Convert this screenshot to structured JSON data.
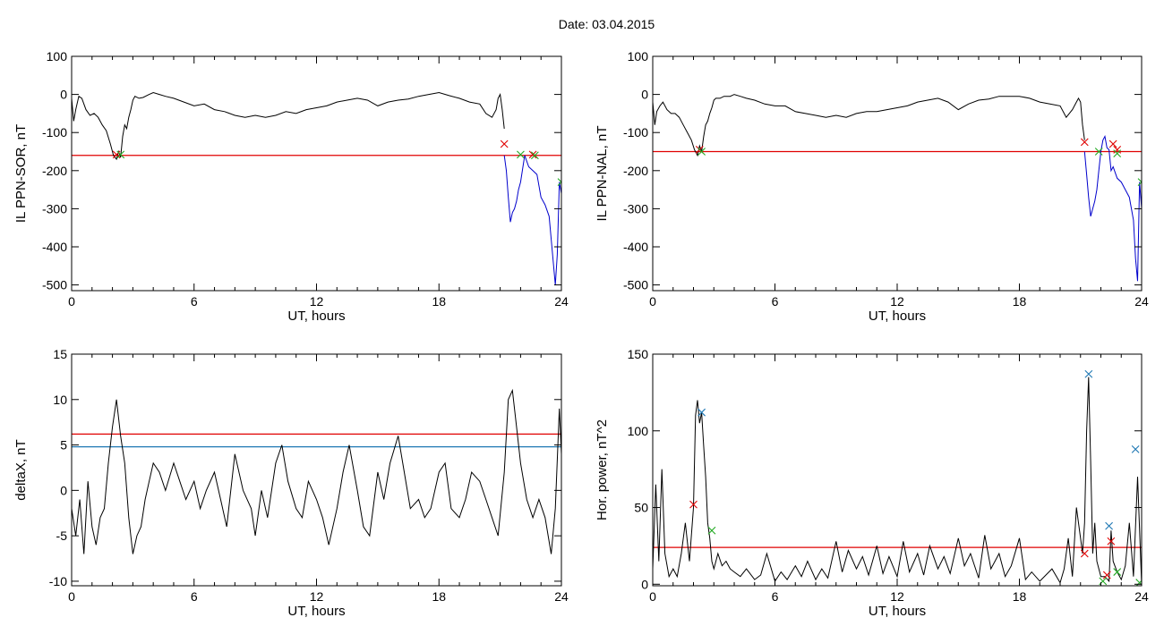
{
  "figure_title": "Date:  03.04.2015",
  "chart_data": [
    {
      "type": "line",
      "ylabel": "IL PPN-SOR, nT",
      "xlabel": "UT, hours",
      "xlim": [
        0,
        24
      ],
      "ylim": [
        -515,
        100
      ],
      "xticks": [
        0,
        6,
        12,
        18,
        24
      ],
      "yticks": [
        100,
        0,
        -100,
        -200,
        -300,
        -400,
        -500
      ],
      "threshold": -160,
      "threshold_color": "#e00000",
      "series": [
        {
          "color": "#000000",
          "x": [
            0,
            0.1,
            0.2,
            0.35,
            0.5,
            0.7,
            0.9,
            1.1,
            1.3,
            1.5,
            1.7,
            1.9,
            2.05,
            2.2,
            2.3,
            2.4,
            2.5,
            2.6,
            2.7,
            2.8,
            2.9,
            3.0,
            3.1,
            3.3,
            3.5,
            3.8,
            4.0,
            4.3,
            4.6,
            5.0,
            5.5,
            6.0,
            6.5,
            7.0,
            7.5,
            8.0,
            8.5,
            9.0,
            9.5,
            10.0,
            10.5,
            11.0,
            11.5,
            12.0,
            12.5,
            13.0,
            13.5,
            14.0,
            14.5,
            15.0,
            15.5,
            16.0,
            16.5,
            17.0,
            17.5,
            18.0,
            18.5,
            19.0,
            19.5,
            20.0,
            20.3,
            20.6,
            20.8,
            20.9,
            21.0,
            21.1,
            21.2
          ],
          "y": [
            -10,
            -70,
            -40,
            -5,
            -10,
            -40,
            -55,
            -50,
            -60,
            -80,
            -95,
            -130,
            -160,
            -170,
            -150,
            -165,
            -110,
            -80,
            -90,
            -60,
            -40,
            -15,
            -5,
            -10,
            -8,
            0,
            5,
            0,
            -5,
            -10,
            -20,
            -30,
            -25,
            -40,
            -45,
            -55,
            -60,
            -55,
            -60,
            -55,
            -45,
            -50,
            -40,
            -35,
            -30,
            -20,
            -15,
            -10,
            -15,
            -30,
            -20,
            -15,
            -12,
            -5,
            0,
            5,
            -3,
            -10,
            -20,
            -25,
            -50,
            -60,
            -40,
            -10,
            0,
            -40,
            -90
          ]
        },
        {
          "color": "#0000cc",
          "x": [
            21.2,
            21.3,
            21.4,
            21.5,
            21.6,
            21.7,
            21.8,
            21.9,
            22.0,
            22.2,
            22.4,
            22.6,
            22.8,
            23.0,
            23.2,
            23.4,
            23.5,
            23.6,
            23.7,
            23.8,
            23.9,
            24.0
          ],
          "y": [
            -160,
            -200,
            -270,
            -335,
            -310,
            -300,
            -280,
            -250,
            -230,
            -160,
            -190,
            -200,
            -210,
            -270,
            -290,
            -320,
            -380,
            -440,
            -500,
            -420,
            -230,
            -260
          ]
        }
      ],
      "markers": [
        {
          "x": 2.2,
          "y": -158,
          "color": "#e00000"
        },
        {
          "x": 2.4,
          "y": -158,
          "color": "#22aa22"
        },
        {
          "x": 21.2,
          "y": -130,
          "color": "#e00000"
        },
        {
          "x": 22.0,
          "y": -158,
          "color": "#22aa22"
        },
        {
          "x": 22.6,
          "y": -158,
          "color": "#e00000"
        },
        {
          "x": 22.7,
          "y": -160,
          "color": "#22aa22"
        },
        {
          "x": 24.0,
          "y": -230,
          "color": "#22aa22"
        }
      ]
    },
    {
      "type": "line",
      "ylabel": "IL PPN-NAL, nT",
      "xlabel": "UT, hours",
      "xlim": [
        0,
        24
      ],
      "ylim": [
        -515,
        100
      ],
      "xticks": [
        0,
        6,
        12,
        18,
        24
      ],
      "yticks": [
        100,
        0,
        -100,
        -200,
        -300,
        -400,
        -500
      ],
      "threshold": -150,
      "threshold_color": "#e00000",
      "series": [
        {
          "color": "#000000",
          "x": [
            0,
            0.1,
            0.2,
            0.35,
            0.5,
            0.7,
            0.9,
            1.1,
            1.3,
            1.5,
            1.7,
            1.9,
            2.05,
            2.2,
            2.3,
            2.4,
            2.5,
            2.6,
            2.7,
            2.8,
            2.9,
            3.0,
            3.1,
            3.3,
            3.5,
            3.8,
            4.0,
            4.3,
            4.6,
            5.0,
            5.5,
            6.0,
            6.5,
            7.0,
            7.5,
            8.0,
            8.5,
            9.0,
            9.5,
            10.0,
            10.5,
            11.0,
            11.5,
            12.0,
            12.5,
            13.0,
            13.5,
            14.0,
            14.5,
            15.0,
            15.5,
            16.0,
            16.5,
            17.0,
            17.5,
            18.0,
            18.5,
            19.0,
            19.5,
            20.0,
            20.3,
            20.6,
            20.8,
            20.9,
            21.0,
            21.1,
            21.2
          ],
          "y": [
            -20,
            -80,
            -45,
            -30,
            -20,
            -40,
            -50,
            -50,
            -60,
            -80,
            -100,
            -120,
            -145,
            -160,
            -135,
            -150,
            -110,
            -80,
            -70,
            -50,
            -35,
            -15,
            -10,
            -10,
            -5,
            -5,
            0,
            -5,
            -10,
            -15,
            -25,
            -30,
            -30,
            -45,
            -50,
            -55,
            -60,
            -55,
            -60,
            -50,
            -45,
            -45,
            -40,
            -35,
            -30,
            -20,
            -15,
            -10,
            -20,
            -40,
            -25,
            -15,
            -12,
            -5,
            -5,
            -5,
            -10,
            -20,
            -25,
            -30,
            -60,
            -40,
            -20,
            -10,
            -20,
            -80,
            -120
          ]
        },
        {
          "color": "#0000cc",
          "x": [
            21.2,
            21.3,
            21.4,
            21.5,
            21.6,
            21.7,
            21.8,
            21.9,
            22.0,
            22.1,
            22.2,
            22.3,
            22.4,
            22.5,
            22.6,
            22.8,
            23.0,
            23.2,
            23.4,
            23.6,
            23.7,
            23.8,
            23.9,
            24.0
          ],
          "y": [
            -150,
            -210,
            -270,
            -320,
            -300,
            -280,
            -250,
            -200,
            -150,
            -120,
            -110,
            -140,
            -145,
            -200,
            -190,
            -220,
            -230,
            -250,
            -270,
            -330,
            -430,
            -490,
            -230,
            -300
          ]
        }
      ],
      "markers": [
        {
          "x": 2.3,
          "y": -145,
          "color": "#e00000"
        },
        {
          "x": 2.4,
          "y": -150,
          "color": "#22aa22"
        },
        {
          "x": 21.2,
          "y": -125,
          "color": "#e00000"
        },
        {
          "x": 21.9,
          "y": -150,
          "color": "#22aa22"
        },
        {
          "x": 22.6,
          "y": -130,
          "color": "#e00000"
        },
        {
          "x": 22.8,
          "y": -145,
          "color": "#e00000"
        },
        {
          "x": 22.8,
          "y": -155,
          "color": "#22aa22"
        },
        {
          "x": 24.0,
          "y": -230,
          "color": "#22aa22"
        }
      ]
    },
    {
      "type": "line",
      "ylabel": "deltaX, nT",
      "xlabel": "UT, hours",
      "xlim": [
        0,
        24
      ],
      "ylim": [
        -10.5,
        15
      ],
      "xticks": [
        0,
        6,
        12,
        18,
        24
      ],
      "yticks": [
        15,
        10,
        5,
        0,
        -5,
        -10
      ],
      "thresholds": [
        {
          "value": 6.2,
          "color": "#e00000"
        },
        {
          "value": 4.8,
          "color": "#1f78b4"
        }
      ],
      "series": [
        {
          "color": "#000000",
          "x": [
            0,
            0.2,
            0.4,
            0.6,
            0.8,
            1.0,
            1.2,
            1.4,
            1.6,
            1.8,
            2.0,
            2.2,
            2.4,
            2.6,
            2.8,
            3.0,
            3.2,
            3.4,
            3.6,
            3.8,
            4.0,
            4.3,
            4.6,
            5.0,
            5.3,
            5.6,
            6.0,
            6.3,
            6.6,
            7.0,
            7.3,
            7.6,
            8.0,
            8.4,
            8.8,
            9.0,
            9.3,
            9.6,
            10.0,
            10.3,
            10.6,
            11.0,
            11.3,
            11.6,
            12.0,
            12.3,
            12.6,
            13.0,
            13.3,
            13.6,
            14.0,
            14.3,
            14.6,
            15.0,
            15.3,
            15.6,
            16.0,
            16.3,
            16.6,
            17.0,
            17.3,
            17.6,
            18.0,
            18.3,
            18.6,
            19.0,
            19.3,
            19.6,
            20.0,
            20.3,
            20.6,
            20.9,
            21.2,
            21.4,
            21.6,
            21.8,
            22.0,
            22.3,
            22.6,
            22.9,
            23.2,
            23.5,
            23.7,
            23.9,
            24.0
          ],
          "y": [
            -2,
            -5,
            -1,
            -7,
            1,
            -4,
            -6,
            -3,
            -2,
            3,
            7,
            10,
            6,
            3,
            -3,
            -7,
            -5,
            -4,
            -1,
            1,
            3,
            2,
            0,
            3,
            1,
            -1,
            1,
            -2,
            0,
            2,
            -1,
            -4,
            4,
            0,
            -2,
            -5,
            0,
            -3,
            3,
            5,
            1,
            -2,
            -3,
            1,
            -1,
            -3,
            -6,
            -2,
            2,
            5,
            0,
            -4,
            -5,
            2,
            -1,
            3,
            6,
            2,
            -2,
            -1,
            -3,
            -2,
            2,
            3,
            -2,
            -3,
            -1,
            2,
            1,
            -1,
            -3,
            -5,
            2,
            10,
            11,
            7,
            3,
            -1,
            -3,
            -1,
            -3,
            -7,
            -2,
            9,
            4
          ]
        }
      ]
    },
    {
      "type": "line",
      "ylabel": "Hor. power, nT^2",
      "xlabel": "UT, hours",
      "xlim": [
        0,
        24
      ],
      "ylim": [
        -1,
        150
      ],
      "xticks": [
        0,
        6,
        12,
        18,
        24
      ],
      "yticks": [
        150,
        100,
        50,
        0
      ],
      "threshold": 24,
      "threshold_color": "#e00000",
      "series": [
        {
          "color": "#000000",
          "x": [
            0,
            0.15,
            0.3,
            0.45,
            0.6,
            0.8,
            1.0,
            1.2,
            1.4,
            1.6,
            1.8,
            2.0,
            2.1,
            2.2,
            2.3,
            2.4,
            2.5,
            2.6,
            2.7,
            2.8,
            2.9,
            3.0,
            3.2,
            3.4,
            3.6,
            3.8,
            4.0,
            4.3,
            4.6,
            5.0,
            5.3,
            5.6,
            6.0,
            6.3,
            6.6,
            7.0,
            7.3,
            7.6,
            8.0,
            8.3,
            8.6,
            9.0,
            9.3,
            9.6,
            10.0,
            10.3,
            10.6,
            11.0,
            11.3,
            11.6,
            12.0,
            12.3,
            12.6,
            13.0,
            13.3,
            13.6,
            14.0,
            14.3,
            14.6,
            15.0,
            15.3,
            15.6,
            16.0,
            16.3,
            16.6,
            17.0,
            17.3,
            17.6,
            18.0,
            18.3,
            18.6,
            19.0,
            19.3,
            19.6,
            20.0,
            20.2,
            20.4,
            20.6,
            20.8,
            21.0,
            21.1,
            21.2,
            21.3,
            21.4,
            21.5,
            21.6,
            21.7,
            21.8,
            22.0,
            22.2,
            22.4,
            22.5,
            22.6,
            22.8,
            23.0,
            23.2,
            23.4,
            23.6,
            23.8,
            24.0
          ],
          "y": [
            10,
            65,
            15,
            75,
            20,
            5,
            10,
            5,
            20,
            40,
            15,
            50,
            110,
            120,
            105,
            112,
            90,
            70,
            40,
            30,
            15,
            10,
            20,
            12,
            15,
            10,
            8,
            5,
            10,
            3,
            6,
            20,
            2,
            8,
            3,
            12,
            5,
            15,
            3,
            10,
            4,
            28,
            8,
            22,
            10,
            18,
            6,
            25,
            7,
            18,
            5,
            28,
            8,
            20,
            6,
            25,
            10,
            18,
            7,
            30,
            12,
            20,
            4,
            32,
            10,
            20,
            5,
            12,
            30,
            3,
            8,
            2,
            6,
            10,
            1,
            10,
            30,
            5,
            50,
            30,
            20,
            40,
            100,
            135,
            80,
            20,
            40,
            15,
            5,
            5,
            2,
            35,
            15,
            8,
            3,
            12,
            40,
            5,
            70,
            0
          ]
        }
      ],
      "markers": [
        {
          "x": 2.0,
          "y": 52,
          "color": "#e00000"
        },
        {
          "x": 2.4,
          "y": 112,
          "color": "#1f78b4"
        },
        {
          "x": 2.9,
          "y": 35,
          "color": "#22aa22"
        },
        {
          "x": 21.2,
          "y": 20,
          "color": "#e00000"
        },
        {
          "x": 21.4,
          "y": 137,
          "color": "#1f78b4"
        },
        {
          "x": 22.1,
          "y": 2,
          "color": "#22aa22"
        },
        {
          "x": 22.3,
          "y": 6,
          "color": "#e00000"
        },
        {
          "x": 22.4,
          "y": 38,
          "color": "#1f78b4"
        },
        {
          "x": 22.5,
          "y": 28,
          "color": "#e00000"
        },
        {
          "x": 22.8,
          "y": 8,
          "color": "#22aa22"
        },
        {
          "x": 23.7,
          "y": 88,
          "color": "#1f78b4"
        },
        {
          "x": 23.9,
          "y": 1,
          "color": "#22aa22"
        }
      ]
    }
  ]
}
